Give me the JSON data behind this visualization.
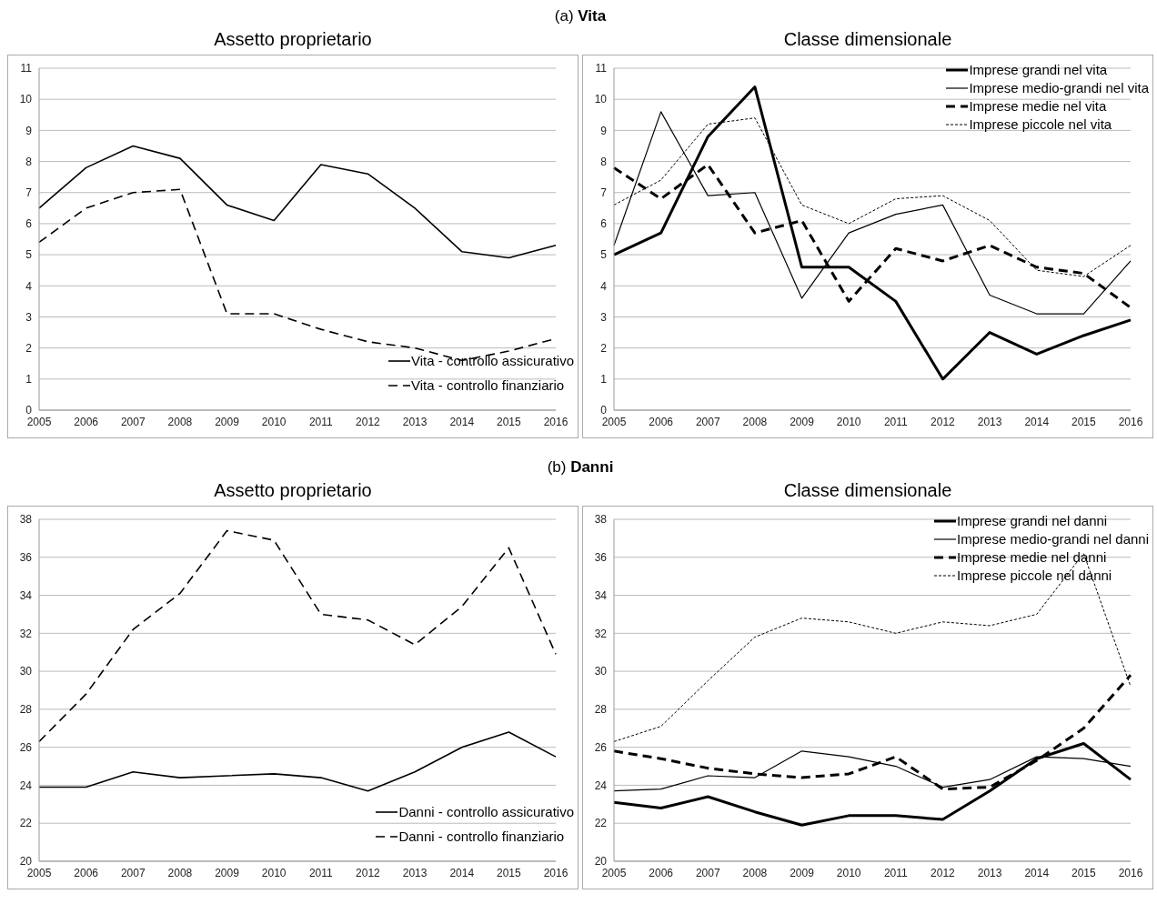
{
  "chart_data": [
    {
      "type": "line",
      "title": "Assetto proprietario",
      "annotations": [
        "(a) Vita"
      ],
      "categories": [
        "2005",
        "2006",
        "2007",
        "2008",
        "2009",
        "2010",
        "2011",
        "2012",
        "2013",
        "2014",
        "2015",
        "2016"
      ],
      "ylim": [
        0,
        11
      ],
      "yticks": [
        0,
        1,
        2,
        3,
        4,
        5,
        6,
        7,
        8,
        9,
        10,
        11
      ],
      "grid": "y",
      "legend": "bottom right",
      "marker": "none",
      "series": [
        {
          "name": "Vita - controllo assicurativo",
          "color": "#000000",
          "line_style": "solid",
          "values": [
            6.5,
            7.8,
            8.5,
            8.1,
            6.6,
            6.1,
            7.9,
            7.6,
            6.5,
            5.1,
            4.9,
            5.3
          ]
        },
        {
          "name": "Vita - controllo finanziario",
          "color": "#000000",
          "line_style": "dashed",
          "values": [
            5.4,
            6.5,
            7.0,
            7.1,
            3.1,
            3.1,
            2.6,
            2.2,
            2.0,
            1.6,
            1.9,
            2.3
          ]
        }
      ]
    },
    {
      "type": "line",
      "title": "Classe dimensionale",
      "categories": [
        "2005",
        "2006",
        "2007",
        "2008",
        "2009",
        "2010",
        "2011",
        "2012",
        "2013",
        "2014",
        "2015",
        "2016"
      ],
      "ylim": [
        0,
        11
      ],
      "yticks": [
        0,
        1,
        2,
        3,
        4,
        5,
        6,
        7,
        8,
        9,
        10,
        11
      ],
      "grid": "y",
      "legend": "top right",
      "marker": "none",
      "series": [
        {
          "name": "Imprese grandi nel vita",
          "color": "#000000",
          "line_style": "solid",
          "values": [
            5.0,
            5.7,
            8.8,
            10.4,
            4.6,
            4.6,
            3.5,
            1.0,
            2.5,
            1.8,
            2.4,
            2.9
          ]
        },
        {
          "name": "Imprese medio-grandi nel vita",
          "color": "#000000",
          "line_style": "solid",
          "values": [
            5.3,
            9.6,
            6.9,
            7.0,
            3.6,
            5.7,
            6.3,
            6.6,
            3.7,
            3.1,
            3.1,
            4.8
          ]
        },
        {
          "name": "Imprese medie nel vita",
          "color": "#000000",
          "line_style": "dashed",
          "values": [
            7.8,
            6.8,
            7.9,
            5.7,
            6.1,
            3.5,
            5.2,
            4.8,
            5.3,
            4.6,
            4.4,
            3.3
          ]
        },
        {
          "name": "Imprese piccole nel vita",
          "color": "#000000",
          "line_style": "dotted",
          "values": [
            6.6,
            7.4,
            9.2,
            9.4,
            6.6,
            6.0,
            6.8,
            6.9,
            6.1,
            4.5,
            4.3,
            5.3
          ]
        }
      ]
    },
    {
      "type": "line",
      "title": "Assetto proprietario",
      "annotations": [
        "(b) Danni"
      ],
      "categories": [
        "2005",
        "2006",
        "2007",
        "2008",
        "2009",
        "2010",
        "2011",
        "2012",
        "2013",
        "2014",
        "2015",
        "2016"
      ],
      "ylim": [
        20,
        38
      ],
      "yticks": [
        20,
        22,
        24,
        26,
        28,
        30,
        32,
        34,
        36,
        38
      ],
      "grid": "y",
      "legend": "bottom right",
      "marker": "none",
      "series": [
        {
          "name": "Danni - controllo assicurativo",
          "color": "#000000",
          "line_style": "solid",
          "values": [
            23.9,
            23.9,
            24.7,
            24.4,
            24.5,
            24.6,
            24.4,
            23.7,
            24.7,
            26.0,
            26.8,
            25.5
          ]
        },
        {
          "name": "Danni - controllo finanziario",
          "color": "#000000",
          "line_style": "dashed",
          "values": [
            26.3,
            28.8,
            32.2,
            34.1,
            37.4,
            36.9,
            33.0,
            32.7,
            31.4,
            33.4,
            36.5,
            30.9
          ]
        }
      ]
    },
    {
      "type": "line",
      "title": "Classe dimensionale",
      "categories": [
        "2005",
        "2006",
        "2007",
        "2008",
        "2009",
        "2010",
        "2011",
        "2012",
        "2013",
        "2014",
        "2015",
        "2016"
      ],
      "ylim": [
        20,
        38
      ],
      "yticks": [
        20,
        22,
        24,
        26,
        28,
        30,
        32,
        34,
        36,
        38
      ],
      "grid": "y",
      "legend": "top right",
      "marker": "none",
      "series": [
        {
          "name": "Imprese grandi nel danni",
          "color": "#000000",
          "line_style": "solid",
          "values": [
            23.1,
            22.8,
            23.4,
            22.6,
            21.9,
            22.4,
            22.4,
            22.2,
            23.7,
            25.4,
            26.2,
            24.3
          ]
        },
        {
          "name": "Imprese medio-grandi nel danni",
          "color": "#000000",
          "line_style": "solid",
          "values": [
            23.7,
            23.8,
            24.5,
            24.4,
            25.8,
            25.5,
            25.0,
            23.9,
            24.3,
            25.5,
            25.4,
            25.0
          ]
        },
        {
          "name": "Imprese medie nel danni",
          "color": "#000000",
          "line_style": "dashed",
          "values": [
            25.8,
            25.4,
            24.9,
            24.6,
            24.4,
            24.6,
            25.5,
            23.8,
            23.9,
            25.3,
            27.0,
            29.8
          ]
        },
        {
          "name": "Imprese piccole nel danni",
          "color": "#000000",
          "line_style": "dotted",
          "values": [
            26.3,
            27.1,
            29.5,
            31.8,
            32.8,
            32.6,
            32.0,
            32.6,
            32.4,
            33.0,
            36.2,
            29.2
          ]
        }
      ]
    }
  ]
}
